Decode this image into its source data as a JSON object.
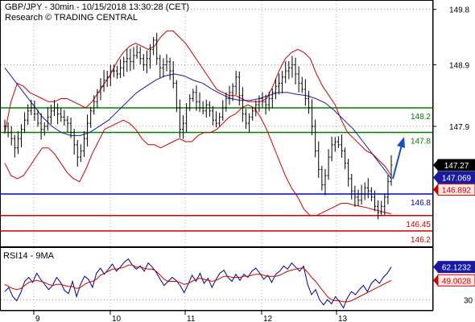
{
  "header": {
    "title_line": "GBP/JPY - 30min - 10/15/2018 13:30:28 (CET)",
    "source_line": "Research © TRADING CENTRAL"
  },
  "rsi_panel": {
    "title": "RSI14 - 9MA"
  },
  "colors": {
    "price": "#000000",
    "bollinger": "#cc0000",
    "ma": "#1a1aa0",
    "resistance": "#008000",
    "support_blue": "#0000cc",
    "support_red": "#cc0000",
    "arrow": "#1a4fc0",
    "rsi": "#00008b",
    "rsi_ma": "#cc0000"
  },
  "chart_data": [
    {
      "type": "candlestick",
      "title": "GBP/JPY - 30min",
      "x_tick_labels": [
        "9",
        "10",
        "11",
        "12",
        "13"
      ],
      "y_tick_labels": [
        "149.8",
        "148.9",
        "147.9"
      ],
      "y_range": [
        145.95,
        149.9
      ],
      "current_price": "147.27",
      "badges": [
        {
          "value": 147.27,
          "label": "147.27",
          "style": "black"
        },
        {
          "value": 147.069,
          "label": "147.069",
          "style": "blue"
        },
        {
          "value": 146.892,
          "label": "146.892",
          "style": "red"
        }
      ],
      "levels": [
        {
          "value": 148.2,
          "label": "148.2",
          "kind": "resistance"
        },
        {
          "value": 147.8,
          "label": "147.8",
          "kind": "resistance"
        },
        {
          "value": 146.8,
          "label": "146.8",
          "kind": "support_blue"
        },
        {
          "value": 146.45,
          "label": "146.45",
          "kind": "support_red"
        },
        {
          "value": 146.2,
          "label": "146.2",
          "kind": "support_red"
        }
      ],
      "close": [
        147.9,
        147.8,
        147.7,
        147.55,
        147.7,
        147.85,
        148.0,
        148.15,
        148.2,
        148.1,
        147.95,
        147.85,
        147.9,
        148.05,
        148.15,
        148.2,
        148.1,
        148.05,
        148.0,
        147.95,
        147.8,
        147.6,
        147.4,
        147.5,
        147.7,
        147.95,
        148.15,
        148.3,
        148.45,
        148.55,
        148.65,
        148.7,
        148.8,
        148.8,
        148.75,
        148.85,
        148.95,
        149.0,
        148.95,
        149.05,
        149.1,
        149.0,
        148.9,
        149.0,
        149.15,
        149.3,
        149.0,
        148.85,
        148.9,
        148.95,
        148.8,
        148.6,
        148.2,
        147.85,
        147.95,
        148.2,
        148.35,
        148.45,
        148.3,
        148.2,
        148.15,
        148.25,
        148.15,
        148.0,
        147.95,
        148.05,
        148.2,
        148.35,
        148.45,
        148.55,
        148.7,
        148.4,
        148.1,
        147.95,
        148.05,
        148.15,
        148.25,
        148.35,
        148.3,
        148.25,
        148.35,
        148.45,
        148.55,
        148.6,
        148.7,
        148.8,
        148.85,
        148.9,
        148.75,
        148.6,
        148.5,
        148.35,
        148.2,
        147.9,
        147.5,
        147.2,
        146.95,
        147.1,
        147.4,
        147.6,
        147.65,
        147.6,
        147.5,
        147.3,
        147.05,
        146.85,
        146.75,
        146.7,
        146.8,
        146.9,
        146.85,
        146.75,
        146.6,
        146.5,
        146.6,
        146.75,
        147.0,
        147.27
      ],
      "bollinger_upper": [
        147.8,
        148.3,
        148.6,
        148.55,
        148.45,
        148.4,
        148.35,
        148.3,
        148.3,
        148.35,
        148.35,
        148.3,
        148.25,
        148.2,
        148.3,
        148.45,
        148.6,
        148.75,
        148.95,
        149.1,
        149.2,
        149.25,
        149.2,
        149.15,
        149.2,
        149.35,
        149.45,
        149.45,
        149.35,
        149.25,
        149.1,
        148.95,
        148.8,
        148.65,
        148.5,
        148.45,
        148.4,
        148.4,
        148.35,
        148.3,
        148.3,
        148.3,
        148.35,
        148.55,
        148.8,
        149.0,
        149.1,
        149.15,
        149.1,
        149.0,
        148.75,
        148.55,
        148.4,
        148.25,
        148.0,
        147.8,
        147.7,
        147.6,
        147.5,
        147.45,
        147.35,
        147.25,
        147.1
      ],
      "bollinger_lower": [
        147.3,
        147.1,
        147.05,
        147.1,
        147.25,
        147.4,
        147.55,
        147.55,
        147.45,
        147.3,
        147.15,
        147.05,
        147.0,
        147.2,
        147.45,
        147.65,
        147.85,
        147.9,
        147.95,
        148.0,
        147.95,
        147.85,
        147.7,
        147.6,
        147.6,
        147.55,
        147.6,
        147.65,
        147.7,
        147.65,
        147.65,
        147.75,
        147.8,
        147.8,
        147.85,
        147.95,
        148.05,
        148.1,
        148.2,
        148.25,
        148.2,
        148.05,
        147.85,
        147.6,
        147.35,
        147.1,
        146.9,
        146.75,
        146.55,
        146.45,
        146.45,
        146.5,
        146.55,
        146.6,
        146.65,
        146.65,
        146.62,
        146.6,
        146.58,
        146.55,
        146.53,
        146.5,
        146.48
      ],
      "moving_average": [
        148.85,
        148.65,
        148.45,
        148.25,
        148.05,
        147.9,
        147.8,
        147.75,
        147.75,
        147.8,
        147.9,
        148.0,
        148.15,
        148.3,
        148.45,
        148.55,
        148.65,
        148.72,
        148.75,
        148.72,
        148.65,
        148.6,
        148.5,
        148.42,
        148.35,
        148.32,
        148.32,
        148.35,
        148.4,
        148.45,
        148.45,
        148.42,
        148.4,
        148.35,
        148.28,
        148.15,
        148.0,
        147.85,
        147.65,
        147.45,
        147.25,
        147.05
      ]
    },
    {
      "type": "line",
      "title": "RSI14 - 9MA",
      "y_tick_labels": [
        "30"
      ],
      "y_range": [
        20,
        80
      ],
      "badges": [
        {
          "value": 62.1232,
          "label": "62.1232",
          "style": "blue"
        },
        {
          "value": 49.0028,
          "label": "49.0028",
          "style": "red"
        }
      ],
      "series": [
        {
          "name": "RSI14",
          "values": [
            38,
            42,
            33,
            29,
            37,
            48,
            52,
            47,
            56,
            50,
            45,
            40,
            44,
            52,
            47,
            39,
            36,
            48,
            33,
            45,
            53,
            50,
            42,
            56,
            61,
            55,
            60,
            65,
            58,
            62,
            67,
            70,
            64,
            60,
            63,
            58,
            66,
            62,
            57,
            50,
            44,
            48,
            52,
            49,
            44,
            37,
            45,
            54,
            48,
            56,
            46,
            51,
            42,
            50,
            56,
            59,
            52,
            48,
            55,
            49,
            55,
            52,
            58,
            61,
            56,
            50,
            54,
            47,
            55,
            58,
            63,
            60,
            66,
            62,
            58,
            63,
            45,
            35,
            40,
            30,
            25,
            30,
            26,
            33,
            28,
            22,
            32,
            38,
            35,
            40,
            44,
            38,
            46,
            50,
            46,
            52,
            56,
            62.1232
          ]
        },
        {
          "name": "9MA",
          "values": [
            45,
            43,
            41,
            40,
            41,
            44,
            47,
            48,
            49,
            48,
            47,
            45,
            44,
            45,
            45,
            44,
            43,
            43,
            41,
            42,
            45,
            47,
            48,
            50,
            54,
            56,
            58,
            60,
            60,
            61,
            62,
            64,
            64,
            62,
            62,
            61,
            60,
            60,
            58,
            54,
            50,
            48,
            48,
            48,
            47,
            45,
            46,
            48,
            50,
            51,
            50,
            49,
            48,
            49,
            51,
            53,
            53,
            52,
            52,
            52,
            53,
            53,
            54,
            55,
            55,
            54,
            53,
            53,
            53,
            54,
            56,
            58,
            59,
            60,
            61,
            61,
            57,
            52,
            48,
            43,
            38,
            33,
            30,
            29,
            29,
            28,
            28,
            29,
            31,
            33,
            35,
            37,
            39,
            41,
            43,
            45,
            47,
            49.0028
          ]
        }
      ]
    }
  ]
}
